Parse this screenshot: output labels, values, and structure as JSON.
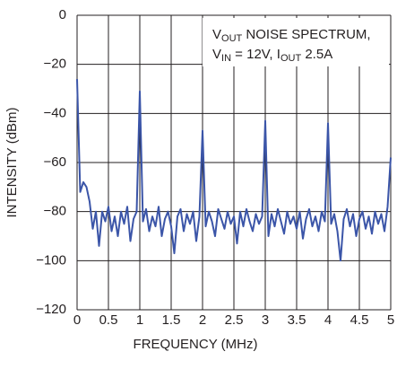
{
  "chart_data": {
    "type": "line",
    "x_label": "FREQUENCY (MHz)",
    "y_label": "INTENSITY (dBm)",
    "annotation": [
      [
        {
          "text": "V"
        },
        {
          "sub": "OUT"
        },
        {
          "text": " NOISE SPECTRUM,"
        }
      ],
      [
        {
          "text": "V"
        },
        {
          "sub": "IN"
        },
        {
          "text": " = 12V, I"
        },
        {
          "sub": "OUT"
        },
        {
          "text": " 2.5A"
        }
      ]
    ],
    "xlim": [
      0,
      5
    ],
    "ylim": [
      -120,
      0
    ],
    "xticks": [
      0,
      0.5,
      1,
      1.5,
      2,
      2.5,
      3,
      3.5,
      4,
      4.5,
      5
    ],
    "yticks": [
      {
        "value": -120,
        "label": "−120"
      },
      {
        "value": -100,
        "label": "−100"
      },
      {
        "value": -80,
        "label": "−80"
      },
      {
        "value": -60,
        "label": "−60"
      },
      {
        "value": -40,
        "label": "−40"
      },
      {
        "value": -20,
        "label": "−20"
      },
      0
    ],
    "grid": true,
    "x": [
      0,
      0.05,
      0.1,
      0.15,
      0.2,
      0.25,
      0.3,
      0.35,
      0.4,
      0.45,
      0.5,
      0.55,
      0.6,
      0.65,
      0.7,
      0.75,
      0.8,
      0.85,
      0.9,
      0.95,
      1,
      1.05,
      1.1,
      1.15,
      1.2,
      1.25,
      1.3,
      1.35,
      1.4,
      1.45,
      1.5,
      1.55,
      1.6,
      1.65,
      1.7,
      1.75,
      1.8,
      1.85,
      1.9,
      1.95,
      2,
      2.05,
      2.1,
      2.15,
      2.2,
      2.25,
      2.3,
      2.35,
      2.4,
      2.45,
      2.5,
      2.55,
      2.6,
      2.65,
      2.7,
      2.75,
      2.8,
      2.85,
      2.9,
      2.95,
      3,
      3.05,
      3.1,
      3.15,
      3.2,
      3.25,
      3.3,
      3.35,
      3.4,
      3.45,
      3.5,
      3.55,
      3.6,
      3.65,
      3.7,
      3.75,
      3.8,
      3.85,
      3.9,
      3.95,
      4,
      4.05,
      4.1,
      4.15,
      4.2,
      4.25,
      4.3,
      4.35,
      4.4,
      4.45,
      4.5,
      4.55,
      4.6,
      4.65,
      4.7,
      4.75,
      4.8,
      4.85,
      4.9,
      4.95,
      5
    ],
    "series": [
      {
        "color": "#3b55a8",
        "values": [
          -26,
          -72,
          -68,
          -70,
          -76,
          -87,
          -80,
          -94,
          -80,
          -84,
          -78,
          -88,
          -82,
          -90,
          -80,
          -85,
          -78,
          -92,
          -83,
          -80,
          -31,
          -84,
          -79,
          -88,
          -82,
          -86,
          -78,
          -90,
          -83,
          -80,
          -86,
          -97,
          -82,
          -79,
          -88,
          -81,
          -85,
          -80,
          -92,
          -82,
          -47,
          -86,
          -80,
          -84,
          -90,
          -79,
          -83,
          -87,
          -80,
          -85,
          -82,
          -93,
          -80,
          -86,
          -79,
          -84,
          -88,
          -81,
          -85,
          -82,
          -43,
          -90,
          -81,
          -86,
          -79,
          -84,
          -89,
          -80,
          -85,
          -82,
          -87,
          -80,
          -91,
          -83,
          -79,
          -86,
          -82,
          -88,
          -80,
          -84,
          -44,
          -85,
          -81,
          -88,
          -100,
          -83,
          -79,
          -86,
          -81,
          -90,
          -83,
          -80,
          -87,
          -82,
          -89,
          -80,
          -85,
          -81,
          -88,
          -78,
          -58
        ]
      }
    ]
  }
}
